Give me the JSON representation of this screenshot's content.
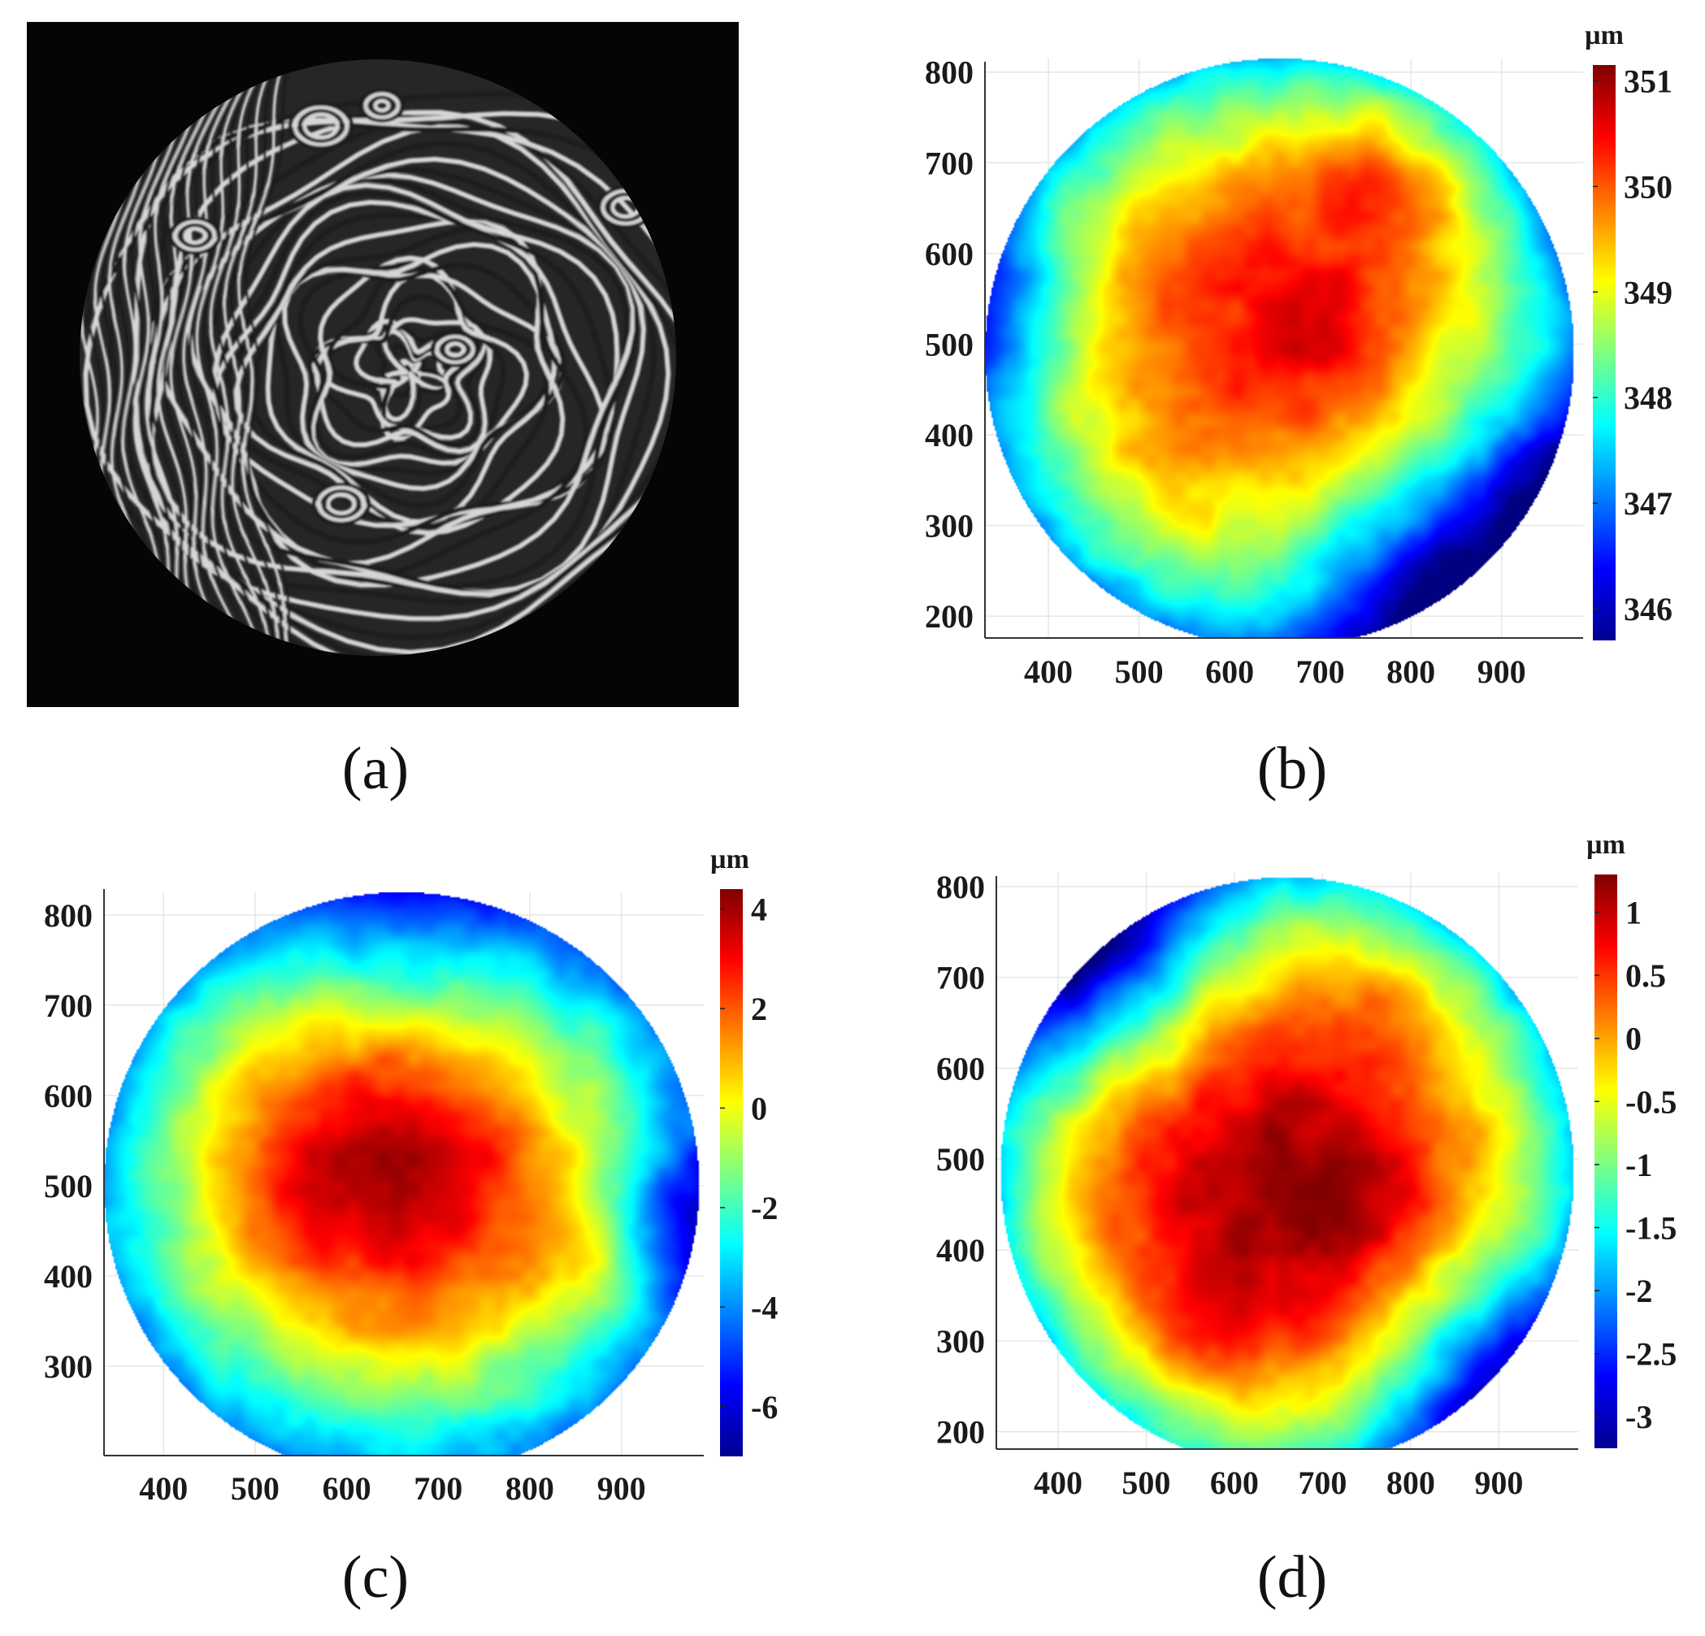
{
  "figure": {
    "background": "#ffffff",
    "fringe_colors": {
      "bright": "#d6d6d6",
      "dark": "#1c1c1c",
      "frame": "#050505"
    }
  },
  "chart_data": [
    {
      "panel": "a",
      "type": "image",
      "caption": "(a)",
      "content": "interferogram"
    },
    {
      "panel": "b",
      "type": "heatmap",
      "caption": "(b)",
      "colormap": "jet",
      "colorbar_unit": "µm",
      "colorbar_ticks": [
        "346",
        "347",
        "348",
        "349",
        "350",
        "351"
      ],
      "value_range": [
        345.7,
        351.15
      ],
      "xlim": [
        330,
        990
      ],
      "ylim": [
        175,
        815
      ],
      "x_ticks": [
        "400",
        "500",
        "600",
        "700",
        "800",
        "900"
      ],
      "y_ticks": [
        "200",
        "300",
        "400",
        "500",
        "600",
        "700",
        "800"
      ],
      "aperture": {
        "center_x": 655,
        "center_y": 490,
        "radius": 325
      },
      "grid": true,
      "field": {
        "base": 349.1,
        "gradient": [
          0.0,
          0.0
        ],
        "radial_amplitude": 2.0,
        "radial_power": 3.5,
        "bumps": [
          {
            "x": 770,
            "y": 690,
            "sigma": 70,
            "amp": 1.0
          },
          {
            "x": 620,
            "y": 530,
            "sigma": 170,
            "amp": 1.1
          },
          {
            "x": 700,
            "y": 500,
            "sigma": 60,
            "amp": 0.5
          },
          {
            "x": 820,
            "y": 230,
            "sigma": 110,
            "amp": -1.8
          },
          {
            "x": 950,
            "y": 350,
            "sigma": 90,
            "amp": -1.0
          },
          {
            "x": 350,
            "y": 530,
            "sigma": 70,
            "amp": -1.0
          }
        ]
      }
    },
    {
      "panel": "c",
      "type": "heatmap",
      "caption": "(c)",
      "colormap": "jet",
      "colorbar_unit": "µm",
      "colorbar_ticks": [
        "-6",
        "-4",
        "-2",
        "0",
        "2",
        "4"
      ],
      "value_range": [
        -7.0,
        4.4
      ],
      "xlim": [
        335,
        990
      ],
      "ylim": [
        200,
        825
      ],
      "x_ticks": [
        "400",
        "500",
        "600",
        "700",
        "800",
        "900"
      ],
      "y_ticks": [
        "300",
        "400",
        "500",
        "600",
        "700",
        "800"
      ],
      "aperture": {
        "center_x": 660,
        "center_y": 500,
        "radius": 325
      },
      "grid": true,
      "field": {
        "base": 0.8,
        "gradient": [
          0.0,
          0.0
        ],
        "radial_amplitude": 5.0,
        "radial_power": 2.0,
        "bumps": [
          {
            "x": 630,
            "y": 540,
            "sigma": 150,
            "amp": 3.3
          },
          {
            "x": 880,
            "y": 410,
            "sigma": 50,
            "amp": 1.5
          },
          {
            "x": 680,
            "y": 780,
            "sigma": 110,
            "amp": -2.0
          },
          {
            "x": 960,
            "y": 460,
            "sigma": 60,
            "amp": -2.5
          }
        ]
      }
    },
    {
      "panel": "d",
      "type": "heatmap",
      "caption": "(d)",
      "colormap": "jet",
      "colorbar_unit": "µm",
      "colorbar_ticks": [
        "-3",
        "-2.5",
        "-2",
        "-1.5",
        "-1",
        "-0.5",
        "0",
        "0.5",
        "1"
      ],
      "value_range": [
        -3.25,
        1.3
      ],
      "xlim": [
        330,
        990
      ],
      "ylim": [
        180,
        815
      ],
      "x_ticks": [
        "400",
        "500",
        "600",
        "700",
        "800",
        "900"
      ],
      "y_ticks": [
        "200",
        "300",
        "400",
        "500",
        "600",
        "700",
        "800"
      ],
      "aperture": {
        "center_x": 660,
        "center_y": 485,
        "radius": 325
      },
      "grid": true,
      "field": {
        "base": 0.1,
        "gradient": [
          0.0,
          0.0
        ],
        "radial_amplitude": 1.9,
        "radial_power": 3.0,
        "bumps": [
          {
            "x": 640,
            "y": 450,
            "sigma": 170,
            "amp": 1.0
          },
          {
            "x": 720,
            "y": 470,
            "sigma": 55,
            "amp": 0.3
          },
          {
            "x": 560,
            "y": 310,
            "sigma": 60,
            "amp": 0.3
          },
          {
            "x": 770,
            "y": 680,
            "sigma": 55,
            "amp": 0.25
          },
          {
            "x": 450,
            "y": 720,
            "sigma": 90,
            "amp": -1.6
          },
          {
            "x": 880,
            "y": 260,
            "sigma": 90,
            "amp": -1.3
          }
        ]
      }
    }
  ]
}
